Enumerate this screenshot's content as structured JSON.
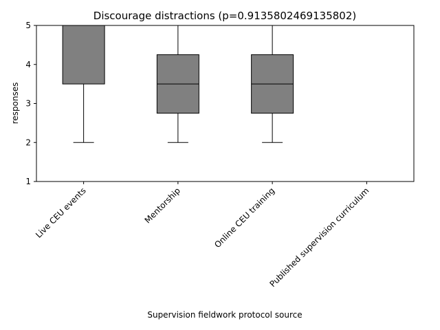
{
  "chart_data": {
    "type": "box",
    "title": "Discourage distractions (p=0.9135802469135802)",
    "xlabel": "Supervision fieldwork protocol source",
    "ylabel": "responses",
    "ylim": [
      1,
      5
    ],
    "yticks": [
      1,
      2,
      3,
      4,
      5
    ],
    "categories": [
      "Live CEU events",
      "Mentorship",
      "Online CEU training",
      "Published supervision curriculum"
    ],
    "boxes": [
      {
        "whisker_low": 2,
        "q1": 3.5,
        "median": 5,
        "q3": 5,
        "whisker_high": 5
      },
      {
        "whisker_low": 2,
        "q1": 2.75,
        "median": 3.5,
        "q3": 4.25,
        "whisker_high": 5
      },
      {
        "whisker_low": 2,
        "q1": 2.75,
        "median": 3.5,
        "q3": 4.25,
        "whisker_high": 5
      },
      {
        "whisker_low": 5,
        "q1": 5,
        "median": 5,
        "q3": 5,
        "whisker_high": 5
      }
    ],
    "box_color": "#808080",
    "line_color": "#000000",
    "grid": false,
    "legend": "none"
  }
}
